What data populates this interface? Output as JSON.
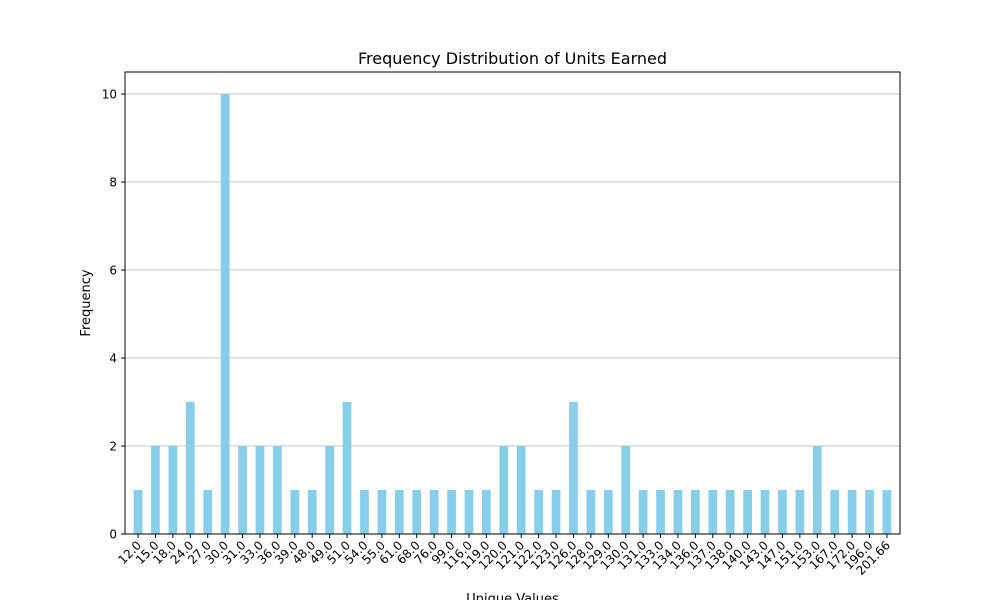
{
  "chart_data": {
    "type": "bar",
    "title": "Frequency Distribution of Units Earned",
    "xlabel": "Unique Values",
    "ylabel": "Frequency",
    "ylim": [
      0,
      10.5
    ],
    "yticks": [
      "0",
      "2",
      "4",
      "6",
      "8",
      "10"
    ],
    "grid": "y",
    "legend": "none",
    "bar_color": "#87ceeb",
    "categories": [
      "12.0",
      "15.0",
      "18.0",
      "24.0",
      "27.0",
      "30.0",
      "31.0",
      "33.0",
      "36.0",
      "39.0",
      "48.0",
      "49.0",
      "51.0",
      "54.0",
      "55.0",
      "61.0",
      "68.0",
      "76.0",
      "99.0",
      "116.0",
      "119.0",
      "120.0",
      "121.0",
      "122.0",
      "123.0",
      "126.0",
      "128.0",
      "129.0",
      "130.0",
      "131.0",
      "133.0",
      "134.0",
      "136.0",
      "137.0",
      "138.0",
      "140.0",
      "143.0",
      "147.0",
      "151.0",
      "153.0",
      "167.0",
      "172.0",
      "196.0",
      "201.66"
    ],
    "values": [
      1,
      2,
      2,
      3,
      1,
      10,
      2,
      2,
      2,
      1,
      1,
      2,
      3,
      1,
      1,
      1,
      1,
      1,
      1,
      1,
      1,
      2,
      2,
      1,
      1,
      3,
      1,
      1,
      2,
      1,
      1,
      1,
      1,
      1,
      1,
      1,
      1,
      1,
      1,
      2,
      1,
      1,
      1,
      1
    ]
  }
}
